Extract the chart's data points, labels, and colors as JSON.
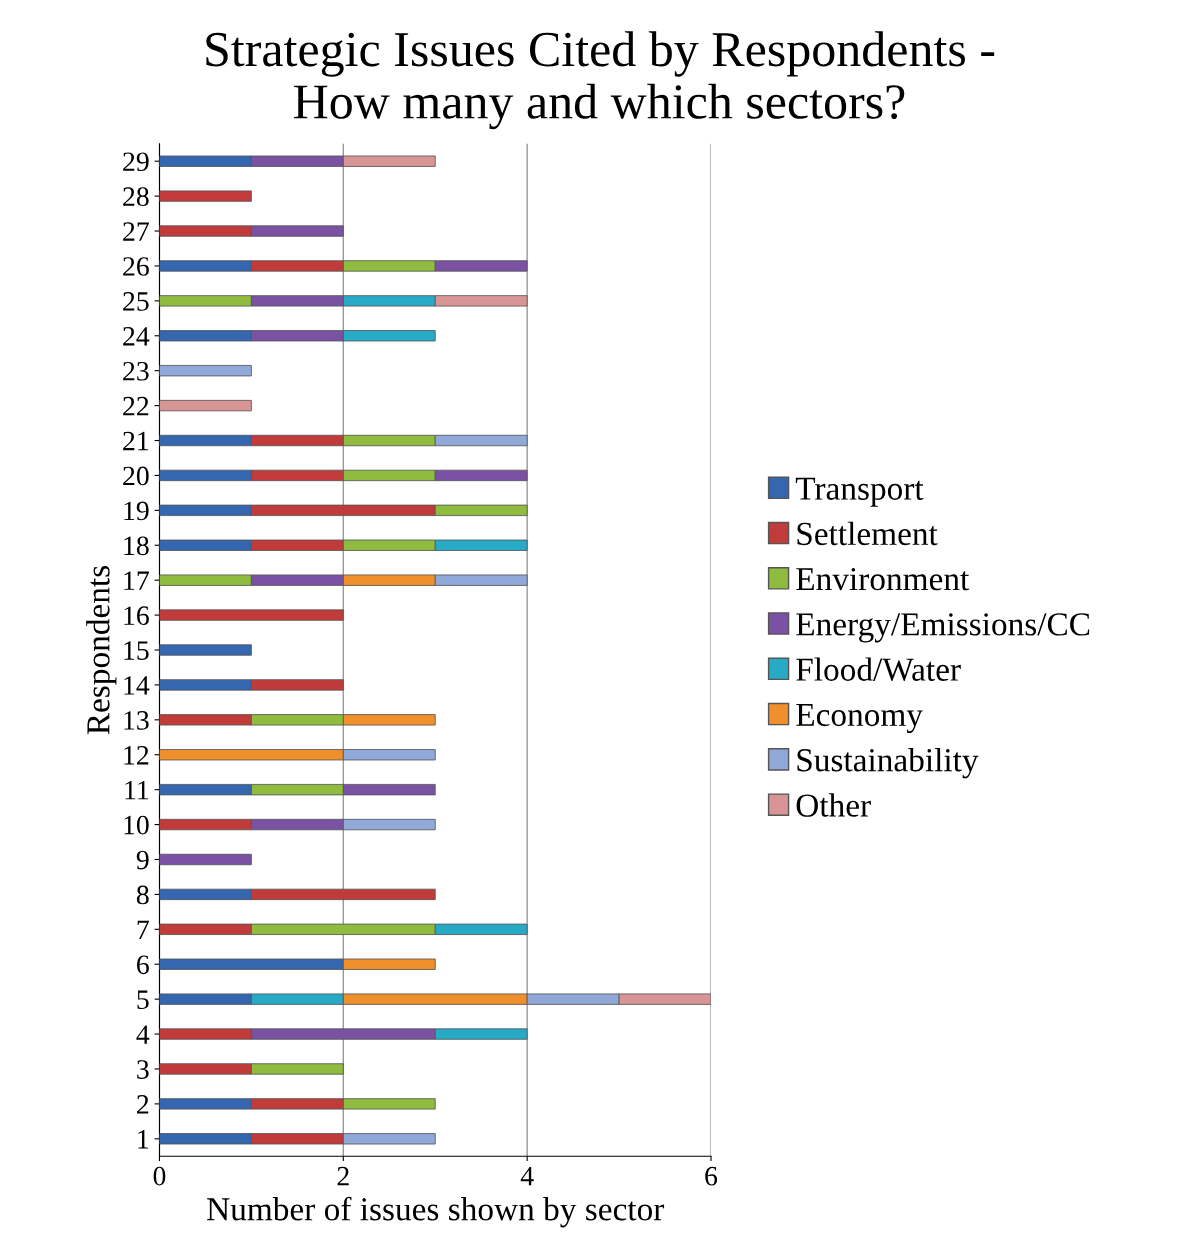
{
  "chart_data": {
    "type": "bar",
    "orientation": "horizontal",
    "stacked": true,
    "title": "Strategic Issues Cited by Respondents -\nHow many and which sectors?",
    "xlabel": "Number of issues shown by sector",
    "ylabel": "Respondents",
    "categories": [
      "29",
      "28",
      "27",
      "26",
      "25",
      "24",
      "23",
      "22",
      "21",
      "20",
      "19",
      "18",
      "17",
      "16",
      "15",
      "14",
      "13",
      "12",
      "11",
      "10",
      "9",
      "8",
      "7",
      "6",
      "5",
      "4",
      "3",
      "2",
      "1"
    ],
    "series": [
      {
        "name": "Transport",
        "color": "#3566b0",
        "values": [
          1,
          null,
          null,
          1,
          null,
          1,
          null,
          null,
          1,
          1,
          1,
          1,
          null,
          null,
          1,
          1,
          null,
          null,
          1,
          null,
          null,
          1,
          null,
          2,
          1,
          null,
          null,
          1,
          1
        ]
      },
      {
        "name": "Settlement",
        "color": "#c23b3b",
        "values": [
          null,
          1,
          1,
          1,
          null,
          null,
          null,
          null,
          1,
          1,
          2,
          1,
          null,
          2,
          null,
          1,
          1,
          null,
          null,
          1,
          null,
          2,
          1,
          null,
          null,
          1,
          1,
          1,
          1
        ]
      },
      {
        "name": "Environment",
        "color": "#8fbb3e",
        "values": [
          null,
          null,
          null,
          1,
          1,
          null,
          null,
          null,
          1,
          1,
          1,
          1,
          1,
          null,
          null,
          null,
          1,
          null,
          1,
          null,
          null,
          null,
          2,
          null,
          null,
          null,
          1,
          1,
          null
        ]
      },
      {
        "name": "Energy/Emissions/CC",
        "color": "#7b52a3",
        "values": [
          1,
          null,
          1,
          1,
          1,
          1,
          null,
          null,
          null,
          1,
          null,
          null,
          1,
          null,
          null,
          null,
          null,
          null,
          1,
          1,
          1,
          null,
          null,
          null,
          null,
          2,
          null,
          null,
          null
        ]
      },
      {
        "name": "Flood/Water",
        "color": "#27aac6",
        "values": [
          null,
          null,
          null,
          null,
          1,
          1,
          null,
          null,
          null,
          null,
          null,
          1,
          null,
          null,
          null,
          null,
          null,
          null,
          null,
          null,
          null,
          null,
          1,
          null,
          1,
          1,
          null,
          null,
          null
        ]
      },
      {
        "name": "Economy",
        "color": "#f0902c",
        "values": [
          null,
          null,
          null,
          null,
          null,
          null,
          null,
          null,
          null,
          null,
          null,
          null,
          1,
          null,
          null,
          null,
          1,
          2,
          null,
          null,
          null,
          null,
          null,
          1,
          2,
          null,
          null,
          null,
          null
        ]
      },
      {
        "name": "Sustainability",
        "color": "#91a9d9",
        "values": [
          null,
          null,
          null,
          null,
          null,
          null,
          1,
          null,
          1,
          null,
          null,
          null,
          1,
          null,
          null,
          null,
          null,
          1,
          null,
          1,
          null,
          null,
          null,
          null,
          1,
          null,
          null,
          null,
          1
        ]
      },
      {
        "name": "Other",
        "color": "#d99595",
        "values": [
          1,
          null,
          null,
          null,
          1,
          null,
          null,
          1,
          null,
          null,
          null,
          null,
          null,
          null,
          null,
          null,
          null,
          null,
          null,
          null,
          null,
          null,
          null,
          null,
          1,
          null,
          null,
          null,
          null
        ]
      }
    ],
    "xlim": [
      0,
      6
    ],
    "xticks": [
      0,
      2,
      4,
      6
    ],
    "grid": "x",
    "legend": "right"
  }
}
